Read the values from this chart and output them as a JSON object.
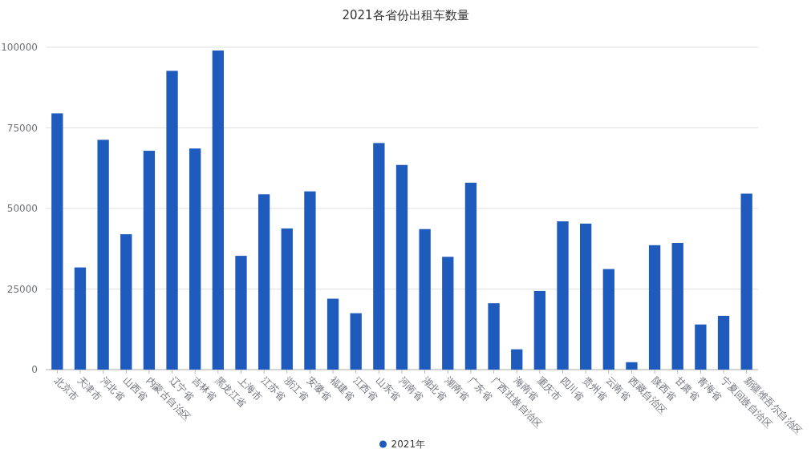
{
  "chart_data": {
    "type": "bar",
    "title": "2021各省份出租车数量",
    "categories": [
      "北京市",
      "天津市",
      "河北省",
      "山西省",
      "内蒙古自治区",
      "辽宁省",
      "吉林省",
      "黑龙江省",
      "上海市",
      "江苏省",
      "浙江省",
      "安徽省",
      "福建省",
      "江西省",
      "山东省",
      "河南省",
      "湖北省",
      "湖南省",
      "广东省",
      "广西壮族自治区",
      "海南省",
      "重庆市",
      "四川省",
      "贵州省",
      "云南省",
      "西藏自治区",
      "陕西省",
      "甘肃省",
      "青海省",
      "宁夏回族自治区",
      "新疆维吾尔自治区"
    ],
    "series": [
      {
        "name": "2021年",
        "color": "#1f5bbc",
        "values": [
          79500,
          31700,
          71300,
          42000,
          67900,
          92700,
          68600,
          99000,
          35300,
          54400,
          43800,
          55300,
          22000,
          17500,
          70300,
          63500,
          43600,
          35000,
          58000,
          20600,
          6300,
          24400,
          46000,
          45300,
          31200,
          2300,
          38600,
          39300,
          14000,
          16700,
          54600
        ]
      }
    ],
    "ylim": [
      0,
      100000
    ],
    "yticks": [
      0,
      25000,
      50000,
      75000,
      100000
    ],
    "grid": "y",
    "legend": "bottom"
  }
}
